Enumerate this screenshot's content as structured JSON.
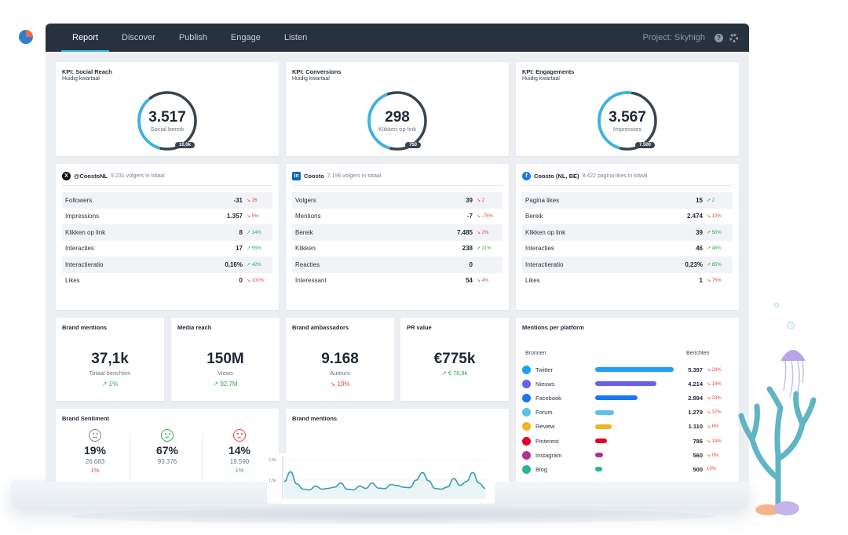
{
  "nav": {
    "tabs": [
      {
        "label": "Report",
        "active": true
      },
      {
        "label": "Discover"
      },
      {
        "label": "Publish"
      },
      {
        "label": "Engage"
      },
      {
        "label": "Listen"
      }
    ],
    "project": "Project: Skyhigh",
    "help_icon": "help-icon",
    "settings_icon": "gear-icon"
  },
  "kpis": [
    {
      "title": "KPI: Social Reach",
      "subtitle": "Huidig kwartaal",
      "value": "3.517",
      "label": "Social bereik",
      "max": "10,0k",
      "progress": 0.35
    },
    {
      "title": "KPI: Conversions",
      "subtitle": "Huidig kwartaal",
      "value": "298",
      "label": "Klikken op link",
      "max": "750",
      "progress": 0.4
    },
    {
      "title": "KPI: Engagements",
      "subtitle": "Huidig kwartaal",
      "value": "3.567",
      "label": "Impressies",
      "max": "7.500",
      "progress": 0.48
    }
  ],
  "social": [
    {
      "icon": "x-icon",
      "glyph": "X",
      "account": "@CoostoNL",
      "summary": "5.231 volgers in totaal",
      "rows": [
        {
          "name": "Followers",
          "value": "-31",
          "delta": "↘ 26",
          "dir": "down"
        },
        {
          "name": "Impressions",
          "value": "1.357",
          "delta": "↘ 5%",
          "dir": "down"
        },
        {
          "name": "Klikken op link",
          "value": "8",
          "delta": "↗ 14%",
          "dir": "up"
        },
        {
          "name": "Interacties",
          "value": "17",
          "delta": "↗ 55%",
          "dir": "up"
        },
        {
          "name": "Interactieratio",
          "value": "0,16%",
          "delta": "↗ 42%",
          "dir": "up"
        },
        {
          "name": "Likes",
          "value": "0",
          "delta": "↘ 100%",
          "dir": "down"
        }
      ]
    },
    {
      "icon": "linkedin-icon",
      "glyph": "in",
      "account": "Coosto",
      "summary": "7.196 volgers in totaal",
      "rows": [
        {
          "name": "Volgers",
          "value": "39",
          "delta": "↘ 2",
          "dir": "down"
        },
        {
          "name": "Mentions",
          "value": "-7",
          "delta": "↘ -75%",
          "dir": "down"
        },
        {
          "name": "Bereik",
          "value": "7.485",
          "delta": "↘ 2%",
          "dir": "down"
        },
        {
          "name": "Klikken",
          "value": "238",
          "delta": "↗ 21%",
          "dir": "up"
        },
        {
          "name": "Reacties",
          "value": "0",
          "delta": "",
          "dir": ""
        },
        {
          "name": "Interessant",
          "value": "54",
          "delta": "↘ 4%",
          "dir": "down"
        }
      ]
    },
    {
      "icon": "facebook-icon",
      "glyph": "f",
      "account": "Coosto (NL, BE)",
      "summary": "8.422 pagina likes in totaal",
      "rows": [
        {
          "name": "Pagina likes",
          "value": "15",
          "delta": "↗ 2",
          "dir": "up"
        },
        {
          "name": "Bereik",
          "value": "2.474",
          "delta": "↘ 10%",
          "dir": "down"
        },
        {
          "name": "Klikken op link",
          "value": "39",
          "delta": "↗ 50%",
          "dir": "up"
        },
        {
          "name": "Interacties",
          "value": "46",
          "delta": "↗ 48%",
          "dir": "up"
        },
        {
          "name": "Interactieratio",
          "value": "0,23%",
          "delta": "↗ 85%",
          "dir": "up"
        },
        {
          "name": "Likes",
          "value": "1",
          "delta": "↘ 75%",
          "dir": "down"
        }
      ]
    }
  ],
  "stats": [
    {
      "title": "Brand mentions",
      "value": "37,1k",
      "label": "Totaal berichten",
      "delta": "↗ 1%",
      "dir": "up"
    },
    {
      "title": "Media reach",
      "value": "150M",
      "label": "Views",
      "delta": "↗ 92,7M",
      "dir": "up"
    },
    {
      "title": "Brand ambassadors",
      "value": "9.168",
      "label": "Auteurs",
      "delta": "↘ 10%",
      "dir": "down"
    },
    {
      "title": "PR value",
      "value": "€775k",
      "label": "↗ € 78,8k",
      "delta": "",
      "dir": "up"
    }
  ],
  "sentiment": {
    "title": "Brand Sentiment",
    "items": [
      {
        "name": "neutral",
        "pct": "19%",
        "count": "26.683",
        "delta": "1%",
        "dir": "down",
        "color": "#7a8491"
      },
      {
        "name": "positive",
        "pct": "67%",
        "count": "93.376",
        "delta": "",
        "dir": "",
        "color": "#2fa84f"
      },
      {
        "name": "negative",
        "pct": "14%",
        "count": "19.590",
        "delta": "1%",
        "dir": "up",
        "color": "#e04646"
      }
    ]
  },
  "mentions_chart": {
    "title": "Brand mentions",
    "chart_data": {
      "type": "line",
      "y_ticks": [
        "2,5k",
        "1,5k"
      ],
      "series": [
        {
          "values": [
            1150,
            1800,
            1000,
            650,
            600,
            850,
            650,
            700,
            780,
            1050,
            650,
            600,
            850,
            700,
            1050,
            720,
            680,
            950,
            880,
            780,
            750,
            1250,
            1750,
            1200,
            700,
            650,
            800,
            1350,
            900,
            1150,
            1750,
            1050,
            700
          ]
        }
      ],
      "ylim": [
        0,
        2500
      ]
    }
  },
  "platforms": {
    "title": "Mentions per platform",
    "col_source": "Bronnen",
    "col_count": "Berichten",
    "items": [
      {
        "name": "Twitter",
        "value": "5.397",
        "delta": "↘ 24%",
        "dir": "down",
        "share": 1.0,
        "color": "#1da1f2"
      },
      {
        "name": "Nieuws",
        "value": "4.214",
        "delta": "↘ 14%",
        "dir": "down",
        "share": 0.78,
        "color": "#6663e6"
      },
      {
        "name": "Facebook",
        "value": "2.894",
        "delta": "↘ 23%",
        "dir": "down",
        "share": 0.54,
        "color": "#1877f2"
      },
      {
        "name": "Forum",
        "value": "1.279",
        "delta": "↘ 37%",
        "dir": "down",
        "share": 0.24,
        "color": "#5bc0eb"
      },
      {
        "name": "Review",
        "value": "1.110",
        "delta": "↘ 6%",
        "dir": "down",
        "share": 0.21,
        "color": "#f0b323"
      },
      {
        "name": "Pinterest",
        "value": "786",
        "delta": "↘ 14%",
        "dir": "down",
        "share": 0.15,
        "color": "#e60023"
      },
      {
        "name": "Instagram",
        "value": "560",
        "delta": "↘ 0%",
        "dir": "down",
        "share": 0.1,
        "color": "#b5318f"
      },
      {
        "name": "Blog",
        "value": "500",
        "delta": "10%",
        "dir": "down",
        "share": 0.09,
        "color": "#2bb39b"
      }
    ]
  }
}
